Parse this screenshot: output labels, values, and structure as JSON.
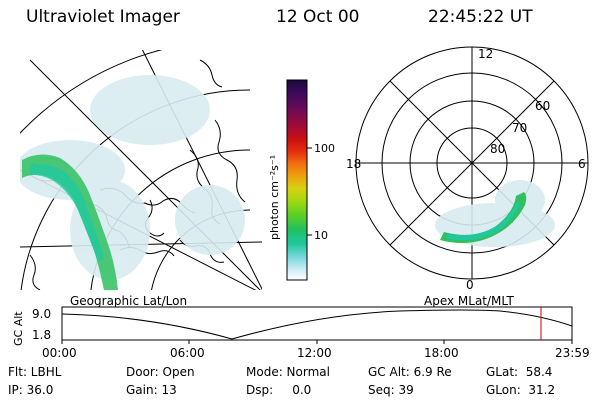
{
  "header": {
    "instrument": "Ultraviolet Imager",
    "date": "12 Oct 00",
    "time": "22:45:22 UT"
  },
  "colorbar": {
    "unit_label": "photon cm⁻²s⁻¹",
    "ticks": [
      "100",
      "10"
    ],
    "colors": [
      "#1a0a3a",
      "#3a0a5a",
      "#6a0a5a",
      "#9a0a3a",
      "#cc1010",
      "#e83010",
      "#f07010",
      "#f0a010",
      "#d8d010",
      "#a8d810",
      "#60d020",
      "#20c060",
      "#20c8a0",
      "#80d8e0",
      "#d0ecf4",
      "#ffffff"
    ]
  },
  "geo_map": {
    "label": "Geographic Lat/Lon",
    "aurora_color": "#30c060"
  },
  "polar_plot": {
    "label": "Apex MLat/MLT",
    "mlt_labels": {
      "top": "12",
      "left": "18",
      "right": "6",
      "bottom": "0"
    },
    "lat_labels": [
      "60",
      "70",
      "80"
    ]
  },
  "timeline": {
    "y_axis_label": "GC Alt",
    "y_max": "9.0",
    "y_min": "1.8",
    "time_ticks": [
      "00:00",
      "06:00",
      "12:00",
      "18:00",
      "23:59"
    ],
    "current_marker_color": "#cc0000"
  },
  "footer": {
    "flt": "Flt: LBHL",
    "ip": "IP: 36.0",
    "door": "Door: Open",
    "gain": "Gain: 13",
    "mode": "Mode: Normal",
    "dsp": "Dsp:     0.0",
    "gc_alt": "GC Alt: 6.9 Re",
    "seq": "Seq: 39",
    "glat": "GLat:  58.4",
    "glon": "GLon:  31.2"
  }
}
